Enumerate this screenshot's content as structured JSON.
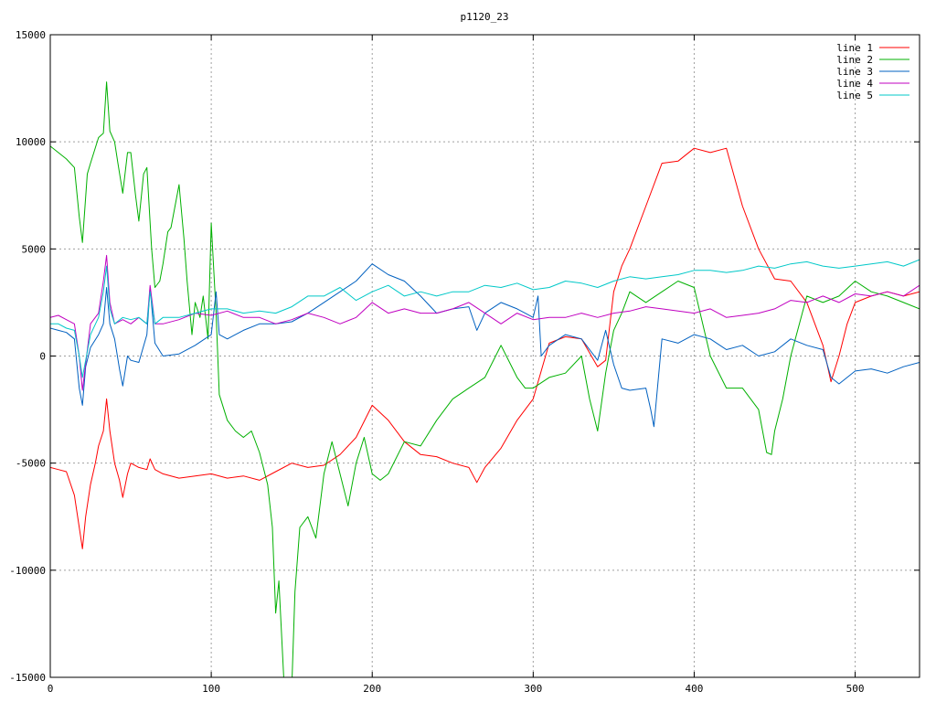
{
  "chart_data": {
    "type": "line",
    "title": "p1120_23",
    "xlabel": "",
    "ylabel": "",
    "xlim": [
      0,
      540
    ],
    "ylim": [
      -15000,
      15000
    ],
    "xticks": [
      0,
      100,
      200,
      300,
      400,
      500
    ],
    "yticks": [
      -15000,
      -10000,
      -5000,
      0,
      5000,
      10000,
      15000
    ],
    "grid": true,
    "legend_position": "top-right",
    "series": [
      {
        "name": "line 1",
        "color": "#ff0000",
        "x": [
          0,
          5,
          10,
          15,
          18,
          20,
          22,
          25,
          28,
          30,
          33,
          35,
          37,
          40,
          43,
          45,
          48,
          50,
          55,
          60,
          62,
          65,
          70,
          80,
          90,
          100,
          110,
          120,
          130,
          140,
          150,
          160,
          170,
          180,
          190,
          200,
          210,
          220,
          230,
          240,
          250,
          260,
          265,
          270,
          280,
          290,
          300,
          310,
          320,
          330,
          340,
          345,
          350,
          355,
          360,
          370,
          380,
          390,
          400,
          410,
          420,
          430,
          440,
          450,
          460,
          470,
          480,
          485,
          490,
          495,
          500,
          510,
          520,
          530,
          540
        ],
        "y": [
          -5200,
          -5300,
          -5400,
          -6500,
          -8000,
          -9000,
          -7500,
          -6000,
          -5000,
          -4200,
          -3500,
          -2000,
          -3500,
          -5000,
          -5800,
          -6600,
          -5500,
          -5000,
          -5200,
          -5300,
          -4800,
          -5300,
          -5500,
          -5700,
          -5600,
          -5500,
          -5700,
          -5600,
          -5800,
          -5400,
          -5000,
          -5200,
          -5100,
          -4600,
          -3800,
          -2300,
          -3000,
          -4000,
          -4600,
          -4700,
          -5000,
          -5200,
          -5900,
          -5200,
          -4300,
          -3000,
          -2000,
          600,
          900,
          800,
          -500,
          -200,
          3000,
          4200,
          5000,
          7000,
          9000,
          9100,
          9700,
          9500,
          9700,
          7000,
          5000,
          3600,
          3500,
          2500,
          500,
          -1200,
          0,
          1500,
          2500,
          2800,
          3000,
          2800,
          3000
        ]
      },
      {
        "name": "line 2",
        "color": "#00b000",
        "x": [
          0,
          5,
          10,
          15,
          18,
          20,
          23,
          25,
          30,
          33,
          35,
          37,
          40,
          42,
          45,
          48,
          50,
          53,
          55,
          58,
          60,
          63,
          65,
          68,
          70,
          73,
          75,
          80,
          83,
          85,
          88,
          90,
          93,
          95,
          98,
          100,
          103,
          105,
          110,
          115,
          120,
          125,
          130,
          135,
          138,
          140,
          142,
          145,
          148,
          150,
          152,
          155,
          160,
          165,
          170,
          175,
          180,
          185,
          190,
          195,
          200,
          205,
          210,
          220,
          230,
          240,
          250,
          260,
          270,
          280,
          290,
          295,
          300,
          310,
          320,
          330,
          335,
          340,
          345,
          350,
          355,
          360,
          370,
          380,
          390,
          400,
          410,
          420,
          430,
          440,
          445,
          448,
          450,
          455,
          460,
          470,
          480,
          490,
          500,
          510,
          520,
          530,
          540
        ],
        "y": [
          9800,
          9500,
          9200,
          8800,
          6500,
          5300,
          8500,
          9000,
          10200,
          10400,
          12800,
          10500,
          10000,
          9000,
          7600,
          9500,
          9500,
          7500,
          6300,
          8500,
          8800,
          5000,
          3200,
          3500,
          4300,
          5800,
          6000,
          8000,
          5500,
          3500,
          1000,
          2500,
          1800,
          2800,
          800,
          6200,
          2000,
          -1800,
          -3000,
          -3500,
          -3800,
          -3500,
          -4500,
          -6000,
          -8000,
          -12000,
          -10500,
          -15000,
          -16000,
          -15500,
          -11000,
          -8000,
          -7500,
          -8500,
          -5500,
          -4000,
          -5500,
          -7000,
          -5000,
          -3800,
          -5500,
          -5800,
          -5500,
          -4000,
          -4200,
          -3000,
          -2000,
          -1500,
          -1000,
          500,
          -1000,
          -1500,
          -1500,
          -1000,
          -800,
          0,
          -2000,
          -3500,
          -800,
          1200,
          2000,
          3000,
          2500,
          3000,
          3500,
          3200,
          0,
          -1500,
          -1500,
          -2500,
          -4500,
          -4600,
          -3500,
          -2000,
          0,
          2800,
          2500,
          2800,
          3500,
          3000,
          2800,
          2500,
          2200
        ]
      },
      {
        "name": "line 3",
        "color": "#0060c0",
        "x": [
          0,
          5,
          10,
          15,
          18,
          20,
          22,
          25,
          30,
          33,
          35,
          37,
          40,
          43,
          45,
          48,
          50,
          55,
          60,
          62,
          65,
          70,
          80,
          90,
          100,
          103,
          105,
          110,
          120,
          130,
          140,
          150,
          160,
          170,
          180,
          190,
          200,
          210,
          220,
          230,
          240,
          250,
          260,
          265,
          270,
          280,
          290,
          295,
          300,
          303,
          305,
          310,
          320,
          330,
          340,
          345,
          350,
          355,
          360,
          370,
          373,
          375,
          380,
          390,
          400,
          410,
          420,
          430,
          440,
          450,
          460,
          470,
          480,
          485,
          490,
          500,
          510,
          520,
          530,
          540
        ],
        "y": [
          1300,
          1200,
          1100,
          800,
          -1500,
          -2300,
          -500,
          400,
          1000,
          1500,
          3200,
          1500,
          800,
          -600,
          -1400,
          0,
          -200,
          -300,
          1000,
          3200,
          600,
          0,
          100,
          500,
          1000,
          3000,
          1000,
          800,
          1200,
          1500,
          1500,
          1600,
          2000,
          2500,
          3000,
          3500,
          4300,
          3800,
          3500,
          2800,
          2000,
          2200,
          2300,
          1200,
          2000,
          2500,
          2200,
          2000,
          1800,
          2800,
          0,
          500,
          1000,
          800,
          -200,
          1200,
          -400,
          -1500,
          -1600,
          -1500,
          -2500,
          -3300,
          800,
          600,
          1000,
          800,
          300,
          500,
          0,
          200,
          800,
          500,
          300,
          -1000,
          -1300,
          -700,
          -600,
          -800,
          -500,
          -300
        ]
      },
      {
        "name": "line 4",
        "color": "#c000c0",
        "x": [
          0,
          5,
          10,
          15,
          18,
          20,
          25,
          30,
          33,
          35,
          37,
          40,
          45,
          50,
          55,
          60,
          62,
          65,
          70,
          80,
          90,
          100,
          110,
          120,
          130,
          140,
          150,
          160,
          170,
          180,
          190,
          200,
          210,
          220,
          230,
          240,
          250,
          260,
          270,
          280,
          290,
          300,
          310,
          320,
          330,
          340,
          350,
          360,
          370,
          380,
          390,
          400,
          410,
          420,
          430,
          440,
          450,
          460,
          470,
          480,
          490,
          500,
          510,
          520,
          530,
          540
        ],
        "y": [
          1800,
          1900,
          1700,
          1500,
          0,
          -1600,
          1500,
          2000,
          3500,
          4700,
          2500,
          1500,
          1700,
          1500,
          1800,
          1500,
          3300,
          1500,
          1500,
          1700,
          2000,
          1900,
          2100,
          1800,
          1800,
          1500,
          1700,
          2000,
          1800,
          1500,
          1800,
          2500,
          2000,
          2200,
          2000,
          2000,
          2200,
          2500,
          2000,
          1500,
          2000,
          1700,
          1800,
          1800,
          2000,
          1800,
          2000,
          2100,
          2300,
          2200,
          2100,
          2000,
          2200,
          1800,
          1900,
          2000,
          2200,
          2600,
          2500,
          2800,
          2500,
          2900,
          2800,
          3000,
          2800,
          3300
        ]
      },
      {
        "name": "line 5",
        "color": "#00c8c8",
        "x": [
          0,
          5,
          10,
          15,
          18,
          20,
          25,
          30,
          33,
          35,
          37,
          40,
          45,
          50,
          55,
          60,
          62,
          65,
          70,
          80,
          90,
          100,
          110,
          120,
          130,
          140,
          150,
          160,
          170,
          180,
          190,
          200,
          210,
          220,
          230,
          240,
          250,
          260,
          270,
          280,
          290,
          300,
          310,
          320,
          330,
          340,
          350,
          360,
          370,
          380,
          390,
          400,
          410,
          420,
          430,
          440,
          450,
          460,
          470,
          480,
          490,
          500,
          510,
          520,
          530,
          540
        ],
        "y": [
          1500,
          1500,
          1300,
          1200,
          0,
          -1000,
          1000,
          1800,
          3000,
          4200,
          2200,
          1500,
          1800,
          1700,
          1800,
          1500,
          3000,
          1500,
          1800,
          1800,
          2000,
          2200,
          2200,
          2000,
          2100,
          2000,
          2300,
          2800,
          2800,
          3200,
          2600,
          3000,
          3300,
          2800,
          3000,
          2800,
          3000,
          3000,
          3300,
          3200,
          3400,
          3100,
          3200,
          3500,
          3400,
          3200,
          3500,
          3700,
          3600,
          3700,
          3800,
          4000,
          4000,
          3900,
          4000,
          4200,
          4100,
          4300,
          4400,
          4200,
          4100,
          4200,
          4300,
          4400,
          4200,
          4500
        ]
      }
    ]
  }
}
